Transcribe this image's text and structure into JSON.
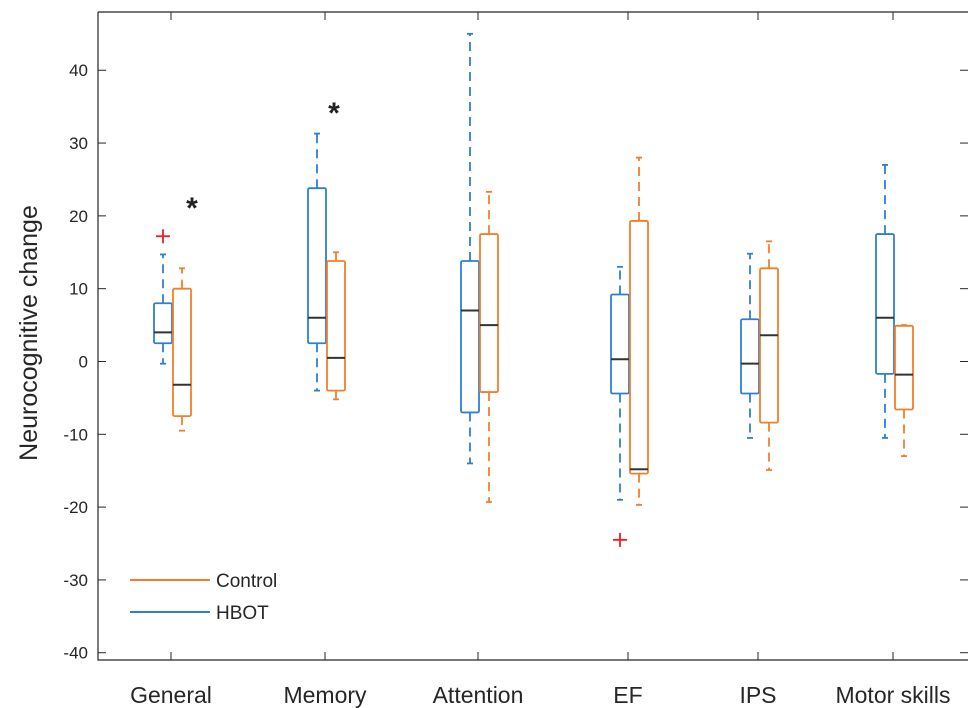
{
  "chart_data": {
    "type": "boxplot",
    "ylabel": "Neurocognitive change",
    "xlabel": "",
    "ylim": [
      -41,
      48
    ],
    "yticks": [
      -40,
      -30,
      -20,
      -10,
      0,
      10,
      20,
      30,
      40
    ],
    "categories": [
      "General",
      "Memory",
      "Attention",
      "EF",
      "IPS",
      "Motor skills"
    ],
    "legend": {
      "placement": "bottom-left",
      "entries": [
        {
          "name": "Control",
          "color": "#f07f2b"
        },
        {
          "name": "HBOT",
          "color": "#2f7fd0"
        }
      ]
    },
    "significance_marker": "*",
    "significant": [
      "General",
      "Memory"
    ],
    "series": [
      {
        "name": "HBOT",
        "color": "#2f7fd0",
        "boxes": [
          {
            "whisker_low": -0.3,
            "q1": 2.5,
            "median": 4,
            "q3": 8,
            "whisker_high": 14.7,
            "outliers": [
              17.2
            ]
          },
          {
            "whisker_low": -4,
            "q1": 2.5,
            "median": 6,
            "q3": 23.8,
            "whisker_high": 31.3,
            "outliers": []
          },
          {
            "whisker_low": -14,
            "q1": -7,
            "median": 7,
            "q3": 13.8,
            "whisker_high": 45,
            "outliers": []
          },
          {
            "whisker_low": -19,
            "q1": -4.4,
            "median": 0.3,
            "q3": 9.2,
            "whisker_high": 13,
            "outliers": [
              -24.5
            ]
          },
          {
            "whisker_low": -10.5,
            "q1": -4.4,
            "median": -0.3,
            "q3": 5.8,
            "whisker_high": 14.8,
            "outliers": []
          },
          {
            "whisker_low": -10.5,
            "q1": -1.7,
            "median": 6,
            "q3": 17.5,
            "whisker_high": 27,
            "outliers": []
          }
        ]
      },
      {
        "name": "Control",
        "color": "#f07f2b",
        "boxes": [
          {
            "whisker_low": -9.5,
            "q1": -7.5,
            "median": -3.2,
            "q3": 10,
            "whisker_high": 12.8,
            "outliers": []
          },
          {
            "whisker_low": -5.2,
            "q1": -4,
            "median": 0.5,
            "q3": 13.8,
            "whisker_high": 15,
            "outliers": []
          },
          {
            "whisker_low": -19.3,
            "q1": -4.2,
            "median": 5,
            "q3": 17.5,
            "whisker_high": 23.3,
            "outliers": []
          },
          {
            "whisker_low": -19.7,
            "q1": -15.4,
            "median": -14.8,
            "q3": 19.3,
            "whisker_high": 28,
            "outliers": []
          },
          {
            "whisker_low": -14.9,
            "q1": -8.4,
            "median": 3.6,
            "q3": 12.8,
            "whisker_high": 16.5,
            "outliers": []
          },
          {
            "whisker_low": -13,
            "q1": -6.6,
            "median": -1.8,
            "q3": 4.9,
            "whisker_high": 5,
            "outliers": []
          }
        ]
      }
    ]
  }
}
